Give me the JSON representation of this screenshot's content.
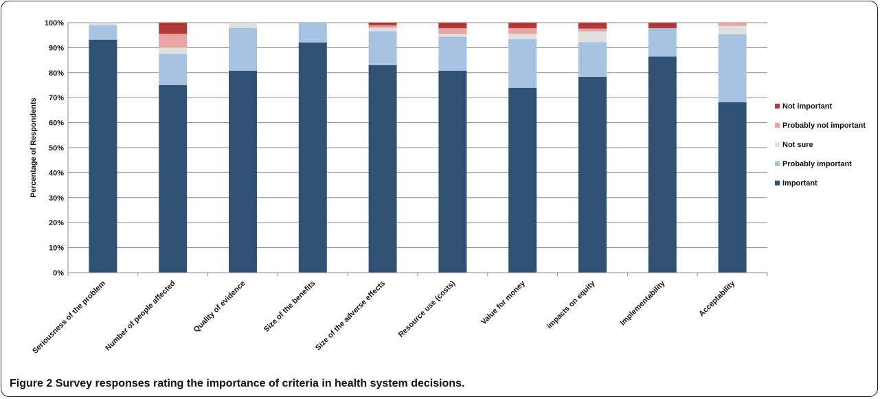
{
  "figure": {
    "label": "Figure 2",
    "caption": "Survey responses rating the importance of criteria in health system decisions."
  },
  "chart_data": {
    "type": "bar",
    "stacked": true,
    "ylabel": "Percentage of Respondents",
    "xlabel": "",
    "ylim": [
      0,
      100
    ],
    "yticks": [
      "0%",
      "10%",
      "20%",
      "30%",
      "40%",
      "50%",
      "60%",
      "70%",
      "80%",
      "90%",
      "100%"
    ],
    "grid": true,
    "legend_position": "right",
    "categories": [
      "Seriousness of the problem",
      "Number of people affected",
      "Quality of evidence",
      "Size of the benefits",
      "Size of the adverse effects",
      "Resource use (costs)",
      "Value for money",
      "impacts on equity",
      "Implementability",
      "Acceptability"
    ],
    "series": [
      {
        "name": "Important",
        "color": "#2f5274",
        "values": [
          93.2,
          75.0,
          80.8,
          92.1,
          83.0,
          80.8,
          73.9,
          78.3,
          86.4,
          68.2
        ]
      },
      {
        "name": "Probably important",
        "color": "#a6c3e2",
        "values": [
          5.8,
          12.5,
          17.0,
          7.9,
          13.6,
          13.6,
          19.5,
          13.9,
          11.4,
          27.2
        ]
      },
      {
        "name": "Not sure",
        "color": "#e0e0e0",
        "values": [
          1.0,
          2.5,
          2.2,
          0,
          1.3,
          1.0,
          2.1,
          4.3,
          0,
          3.3
        ]
      },
      {
        "name": "Probably not important",
        "color": "#e8a5a3",
        "values": [
          0,
          5.5,
          0,
          0,
          1.0,
          2.4,
          2.3,
          1.1,
          0,
          1.3
        ]
      },
      {
        "name": "Not important",
        "color": "#b03a38",
        "values": [
          0,
          4.5,
          0,
          0,
          1.1,
          2.2,
          2.2,
          2.4,
          2.2,
          0
        ]
      }
    ]
  }
}
